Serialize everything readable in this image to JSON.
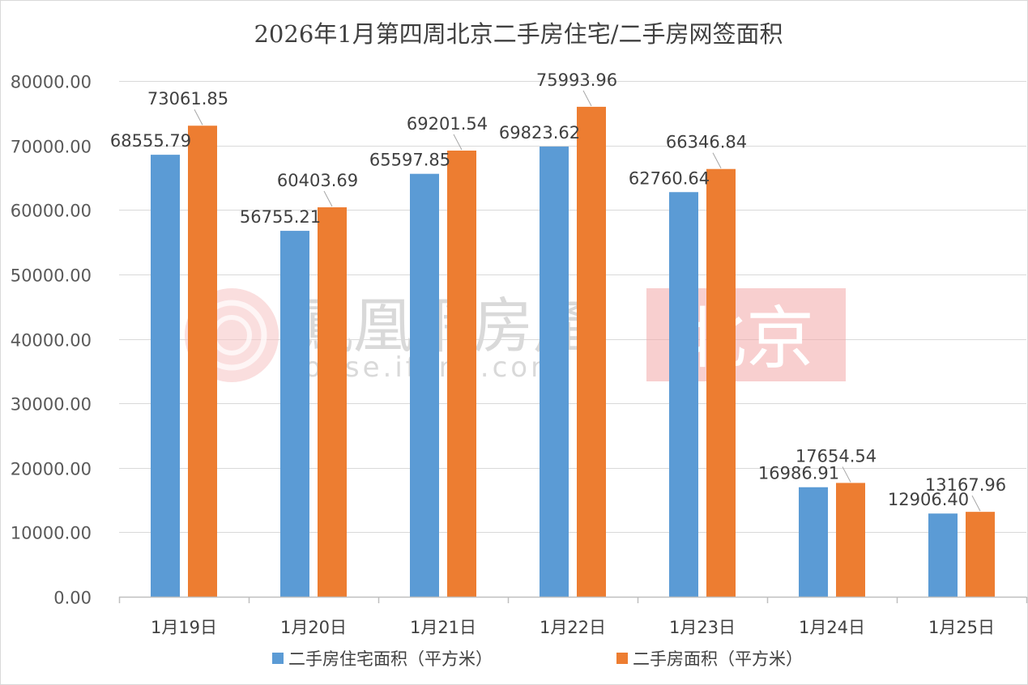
{
  "chart_data": {
    "type": "bar",
    "title": "2026年1月第四周北京二手房住宅/二手房网签面积",
    "categories": [
      "1月19日",
      "1月20日",
      "1月21日",
      "1月22日",
      "1月23日",
      "1月24日",
      "1月25日"
    ],
    "series": [
      {
        "name": "二手房住宅面积（平方米）",
        "color": "#5b9bd5",
        "values": [
          68555.79,
          56755.21,
          65597.85,
          69823.62,
          62760.64,
          16986.91,
          12906.4
        ],
        "labels": [
          "68555.79",
          "56755.21",
          "65597.85",
          "69823.62",
          "62760.64",
          "16986.91",
          "12906.40"
        ]
      },
      {
        "name": "二手房面积（平方米）",
        "color": "#ed7d31",
        "values": [
          73061.85,
          60403.69,
          69201.54,
          75993.96,
          66346.84,
          17654.54,
          13167.96
        ],
        "labels": [
          "73061.85",
          "60403.69",
          "69201.54",
          "75993.96",
          "66346.84",
          "17654.54",
          "13167.96"
        ]
      }
    ],
    "ylim": [
      0,
      80000
    ],
    "yticks": [
      "0.00",
      "10000.00",
      "20000.00",
      "30000.00",
      "40000.00",
      "50000.00",
      "60000.00",
      "70000.00",
      "80000.00"
    ],
    "grid": true,
    "legend_position": "bottom"
  },
  "watermark": {
    "brand": "鳳凰網房產",
    "domain": "house.ifeng.com",
    "city": "北京",
    "logo_icon": "ifeng-phoenix-logo-icon"
  }
}
